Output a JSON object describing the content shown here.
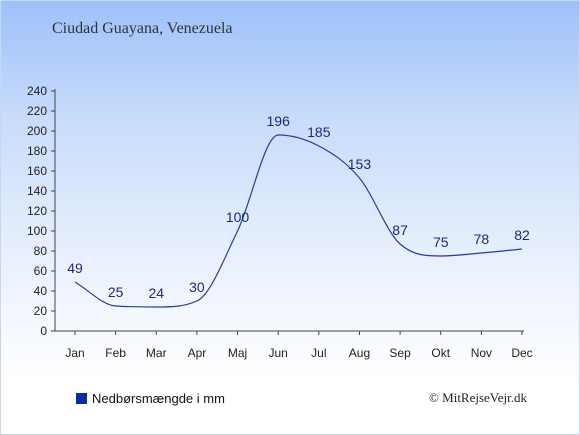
{
  "header": {
    "title": "Ciudad Guayana, Venezuela"
  },
  "legend": {
    "label": "Nedbørsmængde i mm",
    "color": "#0a2aa6"
  },
  "credit": "© MitRejseVejr.dk",
  "chart_data": {
    "type": "line",
    "title": "Ciudad Guayana, Venezuela",
    "xlabel": "",
    "ylabel": "",
    "categories": [
      "Jan",
      "Feb",
      "Mar",
      "Apr",
      "Maj",
      "Jun",
      "Jul",
      "Aug",
      "Sep",
      "Okt",
      "Nov",
      "Dec"
    ],
    "series": [
      {
        "name": "Nedbørsmængde i mm",
        "values": [
          49,
          25,
          24,
          30,
          100,
          196,
          185,
          153,
          87,
          75,
          78,
          82
        ],
        "color": "#2a3aa0"
      }
    ],
    "ylim": [
      0,
      240
    ],
    "yticks": [
      0,
      20,
      40,
      60,
      80,
      100,
      120,
      140,
      160,
      180,
      200,
      220,
      240
    ],
    "grid": false,
    "legend_position": "bottom-left"
  }
}
